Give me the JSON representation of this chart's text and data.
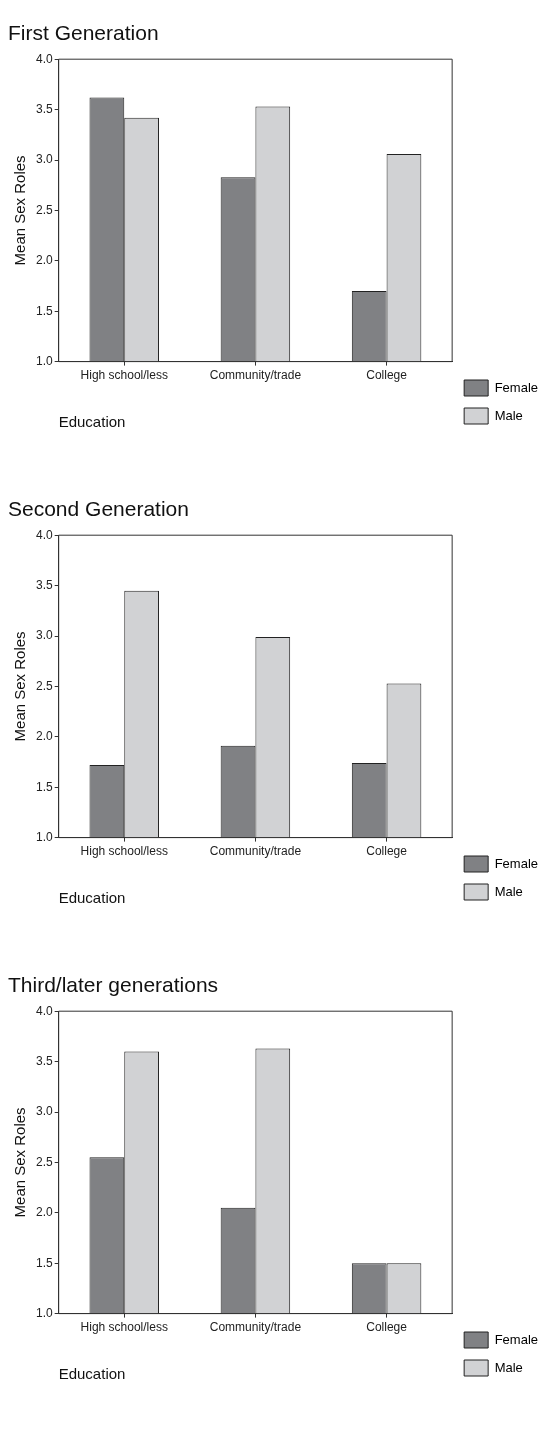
{
  "chart_data": [
    {
      "type": "bar",
      "title": "First Generation",
      "xlabel": "Education",
      "ylabel": "Mean Sex Roles",
      "categories": [
        "High school/less",
        "Community/trade",
        "College"
      ],
      "series": [
        {
          "name": "Female",
          "color": "#808184",
          "values": [
            3.62,
            2.83,
            1.7
          ]
        },
        {
          "name": "Male",
          "color": "#d1d2d4",
          "values": [
            3.42,
            3.53,
            3.06
          ]
        }
      ],
      "ylim": [
        1,
        4
      ],
      "yticks": [
        {
          "value": 1,
          "label": "1.0"
        },
        {
          "value": 1.5,
          "label": "1.5"
        },
        {
          "value": 2,
          "label": "2.0"
        },
        {
          "value": 2.5,
          "label": "2.5"
        },
        {
          "value": 3,
          "label": "3.0"
        },
        {
          "value": 3.5,
          "label": "3.5"
        },
        {
          "value": 4,
          "label": "4.0"
        }
      ],
      "legend": "bottom right"
    },
    {
      "type": "bar",
      "title": "Second Generation",
      "xlabel": "Education",
      "ylabel": "Mean Sex Roles",
      "categories": [
        "High school/less",
        "Community/trade",
        "College"
      ],
      "series": [
        {
          "name": "Female",
          "color": "#808184",
          "values": [
            1.72,
            1.91,
            1.74
          ]
        },
        {
          "name": "Male",
          "color": "#d1d2d4",
          "values": [
            3.45,
            2.99,
            2.53
          ]
        }
      ],
      "ylim": [
        1,
        4
      ],
      "yticks": [
        {
          "value": 1,
          "label": "1.0"
        },
        {
          "value": 1.5,
          "label": "1.5"
        },
        {
          "value": 2,
          "label": "2.0"
        },
        {
          "value": 2.5,
          "label": "2.5"
        },
        {
          "value": 3,
          "label": "3.0"
        },
        {
          "value": 3.5,
          "label": "3.5"
        },
        {
          "value": 4,
          "label": "4.0"
        }
      ],
      "legend": "bottom right"
    },
    {
      "type": "bar",
      "title": "Third/later generations",
      "xlabel": "Education",
      "ylabel": "Mean Sex Roles",
      "categories": [
        "High school/less",
        "Community/trade",
        "College"
      ],
      "series": [
        {
          "name": "Female",
          "color": "#808184",
          "values": [
            2.55,
            2.05,
            1.5
          ]
        },
        {
          "name": "Male",
          "color": "#d1d2d4",
          "values": [
            3.6,
            3.63,
            1.5
          ]
        }
      ],
      "ylim": [
        1,
        4
      ],
      "yticks": [
        {
          "value": 1,
          "label": "1.0"
        },
        {
          "value": 1.5,
          "label": "1.5"
        },
        {
          "value": 2,
          "label": "2.0"
        },
        {
          "value": 2.5,
          "label": "2.5"
        },
        {
          "value": 3,
          "label": "3.0"
        },
        {
          "value": 3.5,
          "label": "3.5"
        },
        {
          "value": 4,
          "label": "4.0"
        }
      ],
      "legend": "bottom right"
    }
  ]
}
